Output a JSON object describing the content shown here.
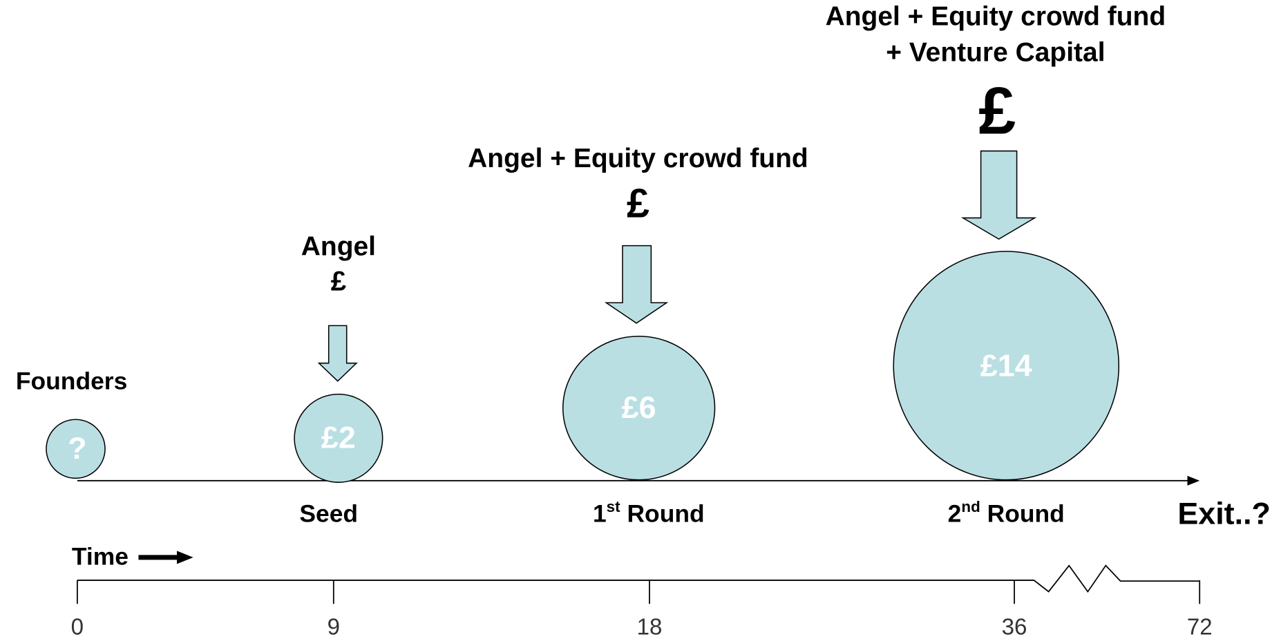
{
  "founders": {
    "label": "Founders",
    "amount": "?"
  },
  "stages": [
    {
      "investor": [
        "Angel"
      ],
      "symbol": "£",
      "amount": "£2",
      "name": {
        "base": "Seed"
      }
    },
    {
      "investor": [
        "Angel + Equity crowd fund"
      ],
      "symbol": "£",
      "amount": "£6",
      "name": {
        "base": "1",
        "sup": "st",
        "rest": " Round"
      }
    },
    {
      "investor": [
        "Angel + Equity crowd fund",
        "+ Venture Capital"
      ],
      "symbol": "£",
      "amount": "£14",
      "name": {
        "base": "2",
        "sup": "nd",
        "rest": " Round"
      }
    }
  ],
  "exit": "Exit..?",
  "timeline": {
    "label": "Time",
    "ticks": [
      0,
      9,
      18,
      36,
      72
    ]
  }
}
